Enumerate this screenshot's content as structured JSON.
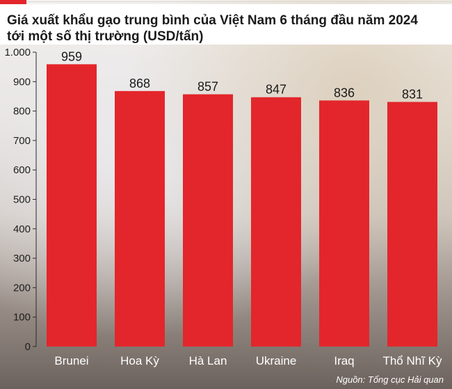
{
  "title_line1": "Giá xuất khẩu gạo trung bình của Việt Nam 6 tháng đầu năm 2024",
  "title_line2": "tới một số thị trường (USD/tấn)",
  "source": "Nguồn: Tổng cục Hải quan",
  "colors": {
    "bar": "#e3262b",
    "accent": "#e3262b"
  },
  "chart_data": {
    "type": "bar",
    "title": "Giá xuất khẩu gạo trung bình của Việt Nam 6 tháng đầu năm 2024 tới một số thị trường (USD/tấn)",
    "categories": [
      "Brunei",
      "Hoa Kỳ",
      "Hà Lan",
      "Ukraine",
      "Iraq",
      "Thổ Nhĩ Kỳ"
    ],
    "values": [
      959,
      868,
      857,
      847,
      836,
      831
    ],
    "value_labels": [
      "959",
      "868",
      "857",
      "847",
      "836",
      "831"
    ],
    "ylim": [
      0,
      1000
    ],
    "yticks": [
      0,
      100,
      200,
      300,
      400,
      500,
      600,
      700,
      800,
      900,
      1000
    ],
    "ytick_labels": [
      "0",
      "100",
      "200",
      "300",
      "400",
      "500",
      "600",
      "700",
      "800",
      "900",
      "1.000"
    ],
    "xlabel": "",
    "ylabel": "",
    "grid": false,
    "legend": "none"
  }
}
